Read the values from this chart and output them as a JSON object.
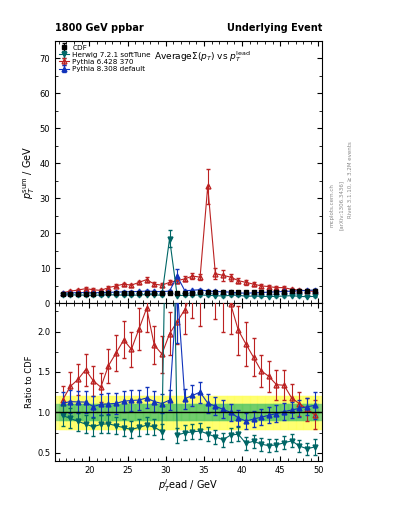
{
  "title_left": "1800 GeV ppbar",
  "title_right": "Underlying Event",
  "plot_title": "AverageΣ(p_{T}) vs p_{T}^{lead}",
  "ylabel_main": "p_{T}^{sum} / GeV",
  "ylabel_ratio": "Ratio to CDF",
  "xlabel": "p_{T}^{l}ead / GeV",
  "xlim": [
    15.5,
    50.5
  ],
  "ylim_main": [
    0,
    75
  ],
  "ylim_ratio": [
    0.4,
    2.35
  ],
  "watermark": "mcplots.cern.ch",
  "arxiv": "[arXiv:1306.3436]",
  "rivet": "Rivet 3.1.10, ≥ 3.2M events",
  "cdf_color": "#000000",
  "herwig_color": "#006666",
  "pythia6_color": "#bb2222",
  "pythia8_color": "#1133bb",
  "cdf_x": [
    16.5,
    17.5,
    18.5,
    19.5,
    20.5,
    21.5,
    22.5,
    23.5,
    24.5,
    25.5,
    26.5,
    27.5,
    28.5,
    29.5,
    30.5,
    31.5,
    32.5,
    33.5,
    34.5,
    35.5,
    36.5,
    37.5,
    38.5,
    39.5,
    40.5,
    41.5,
    42.5,
    43.5,
    44.5,
    45.5,
    46.5,
    47.5,
    48.5,
    49.5
  ],
  "cdf_y": [
    2.6,
    2.65,
    2.7,
    2.75,
    2.8,
    2.82,
    2.85,
    2.88,
    2.9,
    2.92,
    2.95,
    2.97,
    3.0,
    3.02,
    3.04,
    3.06,
    3.08,
    3.1,
    3.12,
    3.14,
    3.16,
    3.18,
    3.2,
    3.22,
    3.25,
    3.27,
    3.3,
    3.32,
    3.35,
    3.37,
    3.4,
    3.43,
    3.46,
    3.5
  ],
  "cdf_yerr": [
    0.28,
    0.28,
    0.28,
    0.28,
    0.28,
    0.28,
    0.28,
    0.28,
    0.28,
    0.28,
    0.28,
    0.28,
    0.28,
    0.28,
    0.28,
    0.28,
    0.28,
    0.28,
    0.28,
    0.28,
    0.28,
    0.28,
    0.28,
    0.28,
    0.28,
    0.28,
    0.28,
    0.28,
    0.28,
    0.28,
    0.28,
    0.28,
    0.28,
    0.5
  ],
  "herwig_x": [
    16.5,
    17.5,
    18.5,
    19.5,
    20.5,
    21.5,
    22.5,
    23.5,
    24.5,
    25.5,
    26.5,
    27.5,
    28.5,
    29.5,
    30.5,
    31.5,
    32.5,
    33.5,
    34.5,
    35.5,
    36.5,
    37.5,
    38.5,
    39.5,
    40.5,
    41.5,
    42.5,
    43.5,
    44.5,
    45.5,
    46.5,
    47.5,
    48.5,
    49.5
  ],
  "herwig_y": [
    2.5,
    2.45,
    2.4,
    2.35,
    2.3,
    2.4,
    2.45,
    2.4,
    2.35,
    2.3,
    2.4,
    2.5,
    2.45,
    2.3,
    18.5,
    2.2,
    2.3,
    2.35,
    2.4,
    2.3,
    2.2,
    2.1,
    2.3,
    2.35,
    2.0,
    2.1,
    2.0,
    1.95,
    2.0,
    2.1,
    2.2,
    2.0,
    1.9,
    2.0
  ],
  "herwig_yerr": [
    0.2,
    0.2,
    0.2,
    0.2,
    0.2,
    0.2,
    0.2,
    0.2,
    0.2,
    0.2,
    0.2,
    0.2,
    0.2,
    0.2,
    2.5,
    0.2,
    0.2,
    0.2,
    0.2,
    0.2,
    0.2,
    0.2,
    0.2,
    0.2,
    0.2,
    0.2,
    0.2,
    0.2,
    0.2,
    0.2,
    0.2,
    0.2,
    0.2,
    0.2
  ],
  "pythia6_x": [
    16.5,
    17.5,
    18.5,
    19.5,
    20.5,
    21.5,
    22.5,
    23.5,
    24.5,
    25.5,
    26.5,
    27.5,
    28.5,
    29.5,
    30.5,
    31.5,
    32.5,
    33.5,
    34.5,
    35.5,
    36.5,
    37.5,
    38.5,
    39.5,
    40.5,
    41.5,
    42.5,
    43.5,
    44.5,
    45.5,
    46.5,
    47.5,
    48.5,
    49.5
  ],
  "pythia6_y": [
    3.0,
    3.5,
    3.8,
    4.2,
    3.9,
    3.7,
    4.5,
    5.0,
    5.5,
    5.2,
    6.0,
    6.8,
    5.5,
    5.2,
    6.0,
    6.5,
    7.0,
    7.8,
    7.5,
    33.5,
    8.5,
    8.0,
    7.5,
    6.5,
    6.0,
    5.5,
    5.0,
    4.8,
    4.5,
    4.5,
    4.0,
    3.8,
    3.6,
    3.4
  ],
  "pythia6_yerr": [
    0.3,
    0.3,
    0.35,
    0.35,
    0.35,
    0.35,
    0.4,
    0.4,
    0.4,
    0.4,
    0.5,
    0.6,
    0.5,
    0.5,
    0.6,
    0.6,
    0.7,
    0.8,
    0.8,
    5.0,
    1.5,
    1.5,
    1.0,
    0.8,
    0.7,
    0.6,
    0.5,
    0.5,
    0.5,
    0.5,
    0.5,
    0.4,
    0.4,
    0.4
  ],
  "pythia8_x": [
    16.5,
    17.5,
    18.5,
    19.5,
    20.5,
    21.5,
    22.5,
    23.5,
    24.5,
    25.5,
    26.5,
    27.5,
    28.5,
    29.5,
    30.5,
    31.5,
    32.5,
    33.5,
    34.5,
    35.5,
    36.5,
    37.5,
    38.5,
    39.5,
    40.5,
    41.5,
    42.5,
    43.5,
    44.5,
    45.5,
    46.5,
    47.5,
    48.5,
    49.5
  ],
  "pythia8_y": [
    2.9,
    3.0,
    3.05,
    3.1,
    3.0,
    3.1,
    3.15,
    3.2,
    3.3,
    3.35,
    3.4,
    3.5,
    3.4,
    3.35,
    3.5,
    7.8,
    3.6,
    3.75,
    3.9,
    3.5,
    3.4,
    3.3,
    3.2,
    3.0,
    2.9,
    3.0,
    3.1,
    3.2,
    3.3,
    3.4,
    3.5,
    3.6,
    3.7,
    3.8
  ],
  "pythia8_yerr": [
    0.2,
    0.2,
    0.2,
    0.2,
    0.2,
    0.2,
    0.2,
    0.2,
    0.2,
    0.2,
    0.2,
    0.2,
    0.2,
    0.2,
    0.2,
    2.0,
    0.2,
    0.2,
    0.2,
    0.2,
    0.2,
    0.2,
    0.2,
    0.2,
    0.2,
    0.2,
    0.2,
    0.2,
    0.2,
    0.2,
    0.2,
    0.2,
    0.2,
    0.2
  ]
}
